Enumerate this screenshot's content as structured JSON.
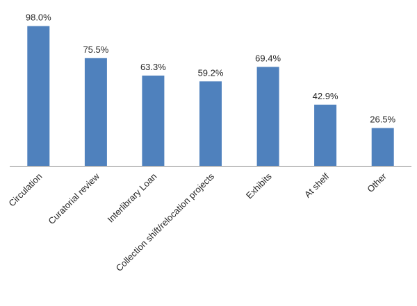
{
  "chart_data": {
    "type": "bar",
    "categories": [
      "Circulation",
      "Curatorial review",
      "Interlibrary Loan",
      "Collection shift/relocation projects",
      "Exhibits",
      "At shelf",
      "Other"
    ],
    "values": [
      98.0,
      75.5,
      63.3,
      59.2,
      69.4,
      42.9,
      26.5
    ],
    "value_labels": [
      "98.0%",
      "75.5%",
      "63.3%",
      "59.2%",
      "69.4%",
      "42.9%",
      "26.5%"
    ],
    "title": "",
    "xlabel": "",
    "ylabel": "",
    "ylim": [
      0,
      100
    ],
    "grid": false,
    "legend": "none",
    "colors": {
      "bar": "#4F81BD",
      "axis": "#8C8C8C",
      "text": "#262626"
    }
  }
}
